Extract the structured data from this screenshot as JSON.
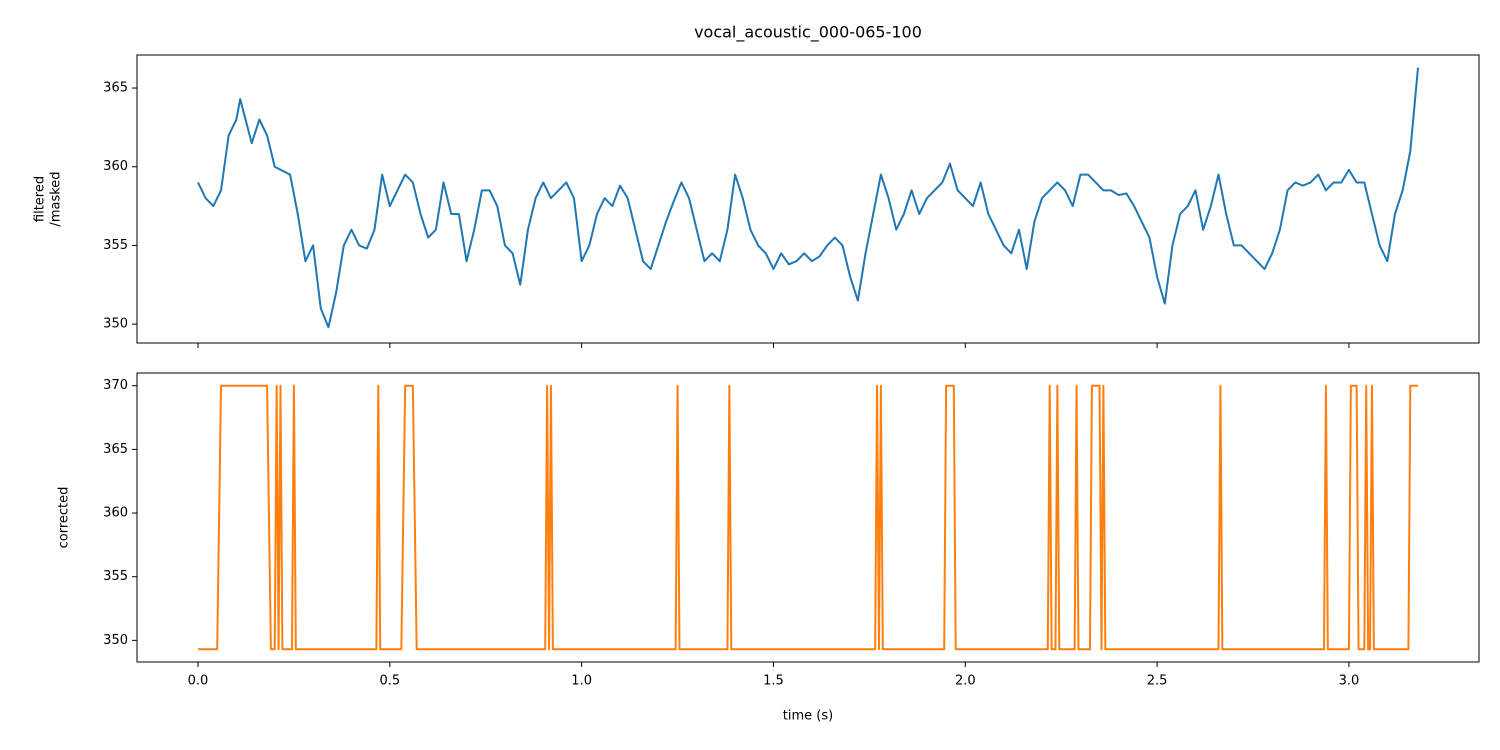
{
  "chart_data": [
    {
      "type": "line",
      "title": "vocal_acoustic_000-065-100",
      "ylabel": [
        "filtered",
        "/masked"
      ],
      "color": "#1f77b4",
      "x": [
        0,
        0.02,
        0.04,
        0.06,
        0.08,
        0.1,
        0.11,
        0.14,
        0.16,
        0.18,
        0.2,
        0.24,
        0.26,
        0.28,
        0.3,
        0.32,
        0.34,
        0.36,
        0.38,
        0.4,
        0.42,
        0.44,
        0.46,
        0.48,
        0.5,
        0.52,
        0.54,
        0.56,
        0.58,
        0.6,
        0.62,
        0.64,
        0.66,
        0.68,
        0.7,
        0.72,
        0.74,
        0.76,
        0.78,
        0.8,
        0.82,
        0.84,
        0.86,
        0.88,
        0.9,
        0.92,
        0.94,
        0.96,
        0.98,
        1.0,
        1.02,
        1.04,
        1.06,
        1.08,
        1.1,
        1.12,
        1.14,
        1.16,
        1.18,
        1.2,
        1.22,
        1.24,
        1.26,
        1.28,
        1.3,
        1.32,
        1.34,
        1.36,
        1.38,
        1.4,
        1.42,
        1.44,
        1.46,
        1.48,
        1.5,
        1.52,
        1.54,
        1.56,
        1.58,
        1.6,
        1.62,
        1.64,
        1.66,
        1.68,
        1.7,
        1.72,
        1.74,
        1.76,
        1.78,
        1.8,
        1.82,
        1.84,
        1.86,
        1.88,
        1.9,
        1.92,
        1.94,
        1.96,
        1.98,
        2.0,
        2.02,
        2.04,
        2.06,
        2.08,
        2.1,
        2.12,
        2.14,
        2.16,
        2.18,
        2.2,
        2.22,
        2.24,
        2.26,
        2.28,
        2.3,
        2.32,
        2.34,
        2.36,
        2.38,
        2.4,
        2.42,
        2.44,
        2.46,
        2.48,
        2.5,
        2.52,
        2.54,
        2.56,
        2.58,
        2.6,
        2.62,
        2.64,
        2.66,
        2.68,
        2.7,
        2.72,
        2.74,
        2.76,
        2.78,
        2.8,
        2.82,
        2.84,
        2.86,
        2.88,
        2.9,
        2.92,
        2.94,
        2.96,
        2.98,
        3.0,
        3.02,
        3.04,
        3.06,
        3.08,
        3.1,
        3.12,
        3.14,
        3.16,
        3.18
      ],
      "values": [
        359,
        358,
        357.5,
        358.5,
        362,
        363,
        364.3,
        361.5,
        363,
        362,
        360,
        359.5,
        357,
        354,
        355,
        351,
        349.8,
        352,
        355,
        356,
        355,
        354.8,
        356,
        359.5,
        357.5,
        358.5,
        359.5,
        359,
        357,
        355.5,
        356,
        359,
        357,
        357,
        354,
        356,
        358.5,
        358.5,
        357.5,
        355,
        354.5,
        352.5,
        356,
        358,
        359,
        358,
        358.5,
        359,
        358,
        354,
        355,
        357,
        358,
        357.5,
        358.8,
        358,
        356,
        354,
        353.5,
        355,
        356.5,
        357.8,
        359,
        358,
        356,
        354,
        354.5,
        354,
        356,
        359.5,
        358,
        356,
        355,
        354.5,
        353.5,
        354.5,
        353.8,
        354,
        354.5,
        354,
        354.3,
        355,
        355.5,
        355,
        353,
        351.5,
        354.5,
        357,
        359.5,
        358,
        356,
        357,
        358.5,
        357,
        358,
        358.5,
        359,
        360.2,
        358.5,
        358,
        357.5,
        359,
        357,
        356,
        355,
        354.5,
        356,
        353.5,
        356.5,
        358,
        358.5,
        359,
        358.5,
        357.5,
        359.5,
        359.5,
        359,
        358.5,
        358.5,
        358.2,
        358.3,
        357.5,
        356.5,
        355.5,
        353,
        351.3,
        355,
        357,
        357.5,
        358.5,
        356,
        357.5,
        359.5,
        357,
        355,
        355,
        354.5,
        354,
        353.5,
        354.5,
        356,
        358.5,
        359,
        358.8,
        359,
        359.5,
        358.5,
        359,
        359,
        359.8,
        359,
        359,
        357,
        355,
        354,
        357,
        358.5,
        361,
        366.3
      ],
      "xlim": [
        -0.159,
        3.339
      ],
      "ylim": [
        348.8,
        367.1
      ],
      "yticks": [
        350,
        355,
        360,
        365
      ]
    },
    {
      "type": "line",
      "xlabel": "time (s)",
      "ylabel": [
        "corrected"
      ],
      "color": "#ff7f0e",
      "x": [
        0,
        0.05,
        0.06,
        0.18,
        0.19,
        0.2,
        0.205,
        0.21,
        0.215,
        0.22,
        0.245,
        0.25,
        0.255,
        0.465,
        0.47,
        0.475,
        0.53,
        0.54,
        0.56,
        0.57,
        0.905,
        0.91,
        0.915,
        0.92,
        0.925,
        1.245,
        1.25,
        1.255,
        1.38,
        1.385,
        1.39,
        1.765,
        1.77,
        1.775,
        1.78,
        1.785,
        1.945,
        1.95,
        1.97,
        1.975,
        2.215,
        2.22,
        2.225,
        2.235,
        2.24,
        2.245,
        2.285,
        2.29,
        2.295,
        2.325,
        2.33,
        2.35,
        2.355,
        2.36,
        2.365,
        2.66,
        2.665,
        2.67,
        2.935,
        2.94,
        2.945,
        3.0,
        3.005,
        3.02,
        3.025,
        3.04,
        3.045,
        3.05,
        3.055,
        3.06,
        3.065,
        3.155,
        3.16,
        3.18
      ],
      "values": [
        349.3,
        349.3,
        370,
        370,
        349.3,
        349.3,
        370,
        349.3,
        370,
        349.3,
        349.3,
        370,
        349.3,
        349.3,
        370,
        349.3,
        349.3,
        370,
        370,
        349.3,
        349.3,
        370,
        349.3,
        370,
        349.3,
        349.3,
        370,
        349.3,
        349.3,
        370,
        349.3,
        349.3,
        370,
        349.3,
        370,
        349.3,
        349.3,
        370,
        370,
        349.3,
        349.3,
        370,
        349.3,
        349.3,
        370,
        349.3,
        349.3,
        370,
        349.3,
        349.3,
        370,
        370,
        349.3,
        370,
        349.3,
        349.3,
        370,
        349.3,
        349.3,
        370,
        349.3,
        349.3,
        370,
        370,
        349.3,
        349.3,
        370,
        349.3,
        349.3,
        370,
        349.3,
        349.3,
        370,
        370
      ],
      "xlim": [
        -0.159,
        3.339
      ],
      "ylim": [
        348.3,
        371.0
      ],
      "yticks": [
        350,
        355,
        360,
        365,
        370
      ],
      "xticks": [
        {
          "value": 0,
          "label": "0.0"
        },
        0.5,
        {
          "value": 1,
          "label": "1.0"
        },
        1.5,
        {
          "value": 2,
          "label": "2.0"
        },
        2.5,
        {
          "value": 3,
          "label": "3.0"
        }
      ]
    }
  ]
}
